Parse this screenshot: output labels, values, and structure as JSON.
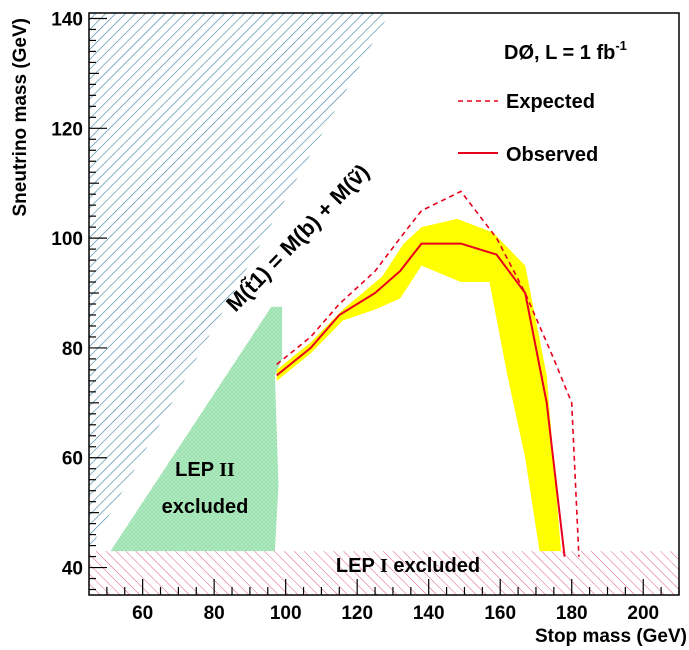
{
  "chart_data": {
    "type": "line",
    "xlabel": "Stop mass (GeV)",
    "ylabel": "Sneutrino mass (GeV)",
    "xlim": [
      45,
      210
    ],
    "ylim": [
      35,
      141
    ],
    "x_ticks": [
      60,
      80,
      100,
      120,
      140,
      160,
      180,
      200
    ],
    "y_ticks": [
      40,
      60,
      80,
      100,
      120,
      140
    ],
    "x_tick_labels": [
      "60",
      "80",
      "100",
      "120",
      "140",
      "160",
      "180",
      "200"
    ],
    "y_tick_labels": [
      "40",
      "60",
      "80",
      "100",
      "120",
      "140"
    ],
    "grid": false,
    "legend": {
      "placement": "top-right",
      "header": "DØ, L = 1 fb",
      "header_sup": "-1",
      "entries": [
        "Expected",
        "Observed"
      ]
    },
    "series": [
      {
        "name": "Observed",
        "color": "#e8001c",
        "style": "solid",
        "x": [
          97.5,
          107,
          115,
          125,
          132,
          138,
          149,
          159,
          167,
          173,
          178
        ],
        "y": [
          75,
          80,
          86,
          90,
          94,
          99,
          99,
          97,
          90,
          70,
          42
        ]
      },
      {
        "name": "Expected",
        "color": "#e8001c",
        "style": "dashed",
        "x": [
          97.5,
          107,
          115,
          125,
          132,
          138,
          149,
          159,
          167,
          175,
          180,
          182
        ],
        "y": [
          77,
          82,
          88,
          94,
          100,
          105,
          108.5,
          100,
          90,
          78,
          70,
          42
        ]
      }
    ],
    "band": {
      "color": "#ffff00",
      "upper": {
        "x": [
          97.5,
          107,
          116,
          127,
          133,
          138,
          148,
          158,
          167,
          173,
          177
        ],
        "y": [
          76,
          81,
          87,
          93,
          99,
          102,
          103.5,
          101,
          95,
          75,
          43
        ]
      },
      "lower": {
        "x": [
          97.5,
          107,
          116,
          125,
          132,
          138,
          149,
          157,
          162,
          167,
          171
        ],
        "y": [
          74,
          79,
          85,
          87,
          89,
          95,
          92,
          92,
          75,
          60,
          43
        ]
      }
    },
    "regions": [
      {
        "label": "M(t̃1) = M(b) + M(ṽ)",
        "kind": "kinematically forbidden",
        "color": "#3a7f9f",
        "x": [
          45,
          45,
          129
        ],
        "y": [
          43,
          141,
          141
        ]
      },
      {
        "label_line1": "LEP ",
        "label_roman": "II",
        "label_line2": "excluded",
        "color": "#a6e8b8",
        "x": [
          51,
          96,
          96,
          99,
          99,
          97,
          98,
          97
        ],
        "y": [
          43,
          87.5,
          87.5,
          87.5,
          78,
          75,
          55,
          43
        ]
      },
      {
        "label_prefix": "LEP ",
        "label_roman": "I",
        "label_suffix": " excluded",
        "color": "#e05a8a",
        "y_range": [
          35,
          43
        ]
      }
    ],
    "diagonal_label": "M(t̃1) = M(b) + M(ṽ)"
  }
}
